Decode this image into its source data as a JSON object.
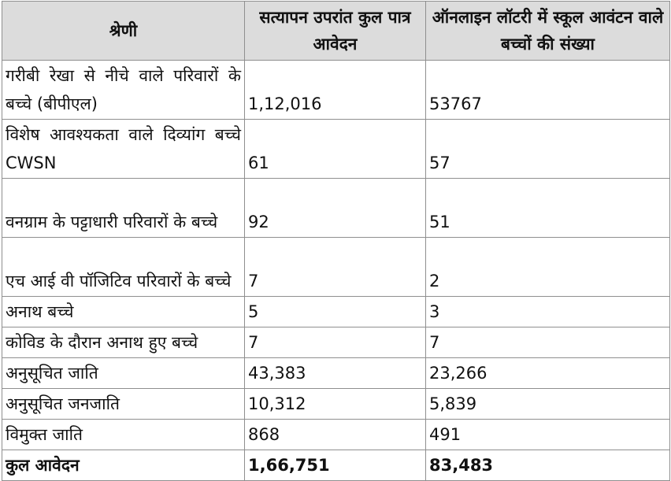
{
  "table": {
    "headers": [
      "श्रेणी",
      "सत्यापन उपरांत कुल पात्र आवेदन",
      "ऑनलाइन लॉटरी में स्कूल आवंटन वाले बच्चों की संख्या"
    ],
    "rows": [
      [
        "गरीबी रेखा से नीचे वाले परिवारों के बच्चे (बीपीएल)",
        "1,12,016",
        "53767"
      ],
      [
        "विशेष आवश्यकता वाले दिव्यांग बच्चे CWSN",
        "61",
        "57"
      ],
      [
        "वनग्राम के पट्टाधारी परिवारों के बच्चे",
        "92",
        "51"
      ],
      [
        "एच आई वी पॉजिटिव परिवारों के बच्चे",
        "7",
        "2"
      ],
      [
        "अनाथ बच्चे",
        "5",
        "3"
      ],
      [
        "कोविड के दौरान अनाथ हुए बच्चे",
        "7",
        "7"
      ],
      [
        "अनुसूचित जाति",
        "43,383",
        "23,266"
      ],
      [
        "अनुसूचित जनजाति",
        "10,312",
        "5,839"
      ],
      [
        "विमुक्त जाति",
        "868",
        "491"
      ]
    ],
    "total": [
      "कुल आवेदन",
      "1,66,751",
      "83,483"
    ]
  }
}
